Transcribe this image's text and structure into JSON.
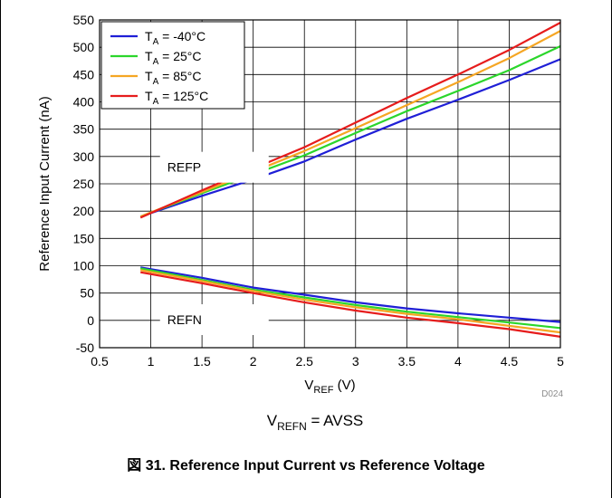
{
  "figure": {
    "caption": "図 31. Reference Input Current vs Reference Voltage",
    "figure_id": "D024",
    "condition": {
      "main": "V",
      "sub": "REFN",
      "rest": " = AVSS"
    }
  },
  "chart_data": {
    "type": "line",
    "ylabel": "Reference Input Current (nA)",
    "xlabel": {
      "main": "V",
      "sub": "REF",
      "rest": " (V)"
    },
    "xlim": [
      0.5,
      5
    ],
    "ylim": [
      -50,
      550
    ],
    "xticks": [
      "0.5",
      "1",
      "1.5",
      "2",
      "2.5",
      "3",
      "3.5",
      "4",
      "4.5",
      "5"
    ],
    "yticks": [
      "-50",
      "0",
      "50",
      "100",
      "150",
      "200",
      "250",
      "300",
      "350",
      "400",
      "450",
      "500",
      "550"
    ],
    "grid": true,
    "legend_position": "top-left",
    "annotations": [
      {
        "text": "REFP",
        "x": 1.55,
        "y": 282
      },
      {
        "text": "REFN",
        "x": 1.55,
        "y": 3
      }
    ],
    "series": [
      {
        "name": {
          "pre": "T",
          "sub": "A",
          "post": " = -40°C"
        },
        "color": "#1f1fd6",
        "REFP": {
          "x": [
            0.9,
            1.5,
            2.0,
            2.5,
            3.0,
            3.5,
            4.0,
            4.5,
            5.0
          ],
          "y": [
            190,
            228,
            258,
            291,
            331,
            369,
            404,
            440,
            478
          ]
        },
        "REFN": {
          "x": [
            0.9,
            1.5,
            2.0,
            2.5,
            3.0,
            3.5,
            4.0,
            4.5,
            5.0
          ],
          "y": [
            97,
            78,
            60,
            47,
            33,
            22,
            13,
            5,
            -3
          ]
        }
      },
      {
        "name": {
          "pre": "T",
          "sub": "A",
          "post": " = 25°C"
        },
        "color": "#2bd62b",
        "REFP": {
          "x": [
            0.9,
            1.5,
            2.0,
            2.5,
            3.0,
            3.5,
            4.0,
            4.5,
            5.0
          ],
          "y": [
            190,
            233,
            267,
            302,
            343,
            383,
            420,
            458,
            502
          ]
        },
        "REFN": {
          "x": [
            0.9,
            1.5,
            2.0,
            2.5,
            3.0,
            3.5,
            4.0,
            4.5,
            5.0
          ],
          "y": [
            95,
            74,
            56,
            42,
            28,
            16,
            6,
            -4,
            -14
          ]
        }
      },
      {
        "name": {
          "pre": "T",
          "sub": "A",
          "post": " = 85°C"
        },
        "color": "#f5a623",
        "REFP": {
          "x": [
            0.9,
            1.5,
            2.0,
            2.5,
            3.0,
            3.5,
            4.0,
            4.5,
            5.0
          ],
          "y": [
            190,
            235,
            272,
            310,
            352,
            394,
            436,
            480,
            530
          ]
        },
        "REFN": {
          "x": [
            0.9,
            1.5,
            2.0,
            2.5,
            3.0,
            3.5,
            4.0,
            4.5,
            5.0
          ],
          "y": [
            92,
            72,
            54,
            38,
            24,
            12,
            2,
            -10,
            -22
          ]
        }
      },
      {
        "name": {
          "pre": "T",
          "sub": "A",
          "post": " = 125°C"
        },
        "color": "#e61c1c",
        "REFP": {
          "x": [
            0.9,
            1.5,
            2.0,
            2.5,
            3.0,
            3.5,
            4.0,
            4.5,
            5.0
          ],
          "y": [
            188,
            238,
            278,
            317,
            362,
            407,
            450,
            495,
            545
          ]
        },
        "REFN": {
          "x": [
            0.9,
            1.5,
            2.0,
            2.5,
            3.0,
            3.5,
            4.0,
            4.5,
            5.0
          ],
          "y": [
            88,
            68,
            50,
            33,
            18,
            5,
            -5,
            -16,
            -30
          ]
        }
      }
    ]
  }
}
